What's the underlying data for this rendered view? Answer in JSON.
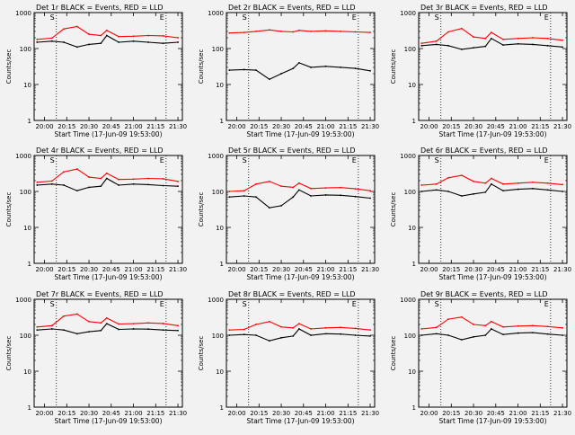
{
  "colors": {
    "events": "#000000",
    "lld": "#ff0000",
    "background": "#f2f2f2",
    "axes": "#000000"
  },
  "chart_data": [
    {
      "type": "line",
      "title": "Det 1r BLACK = Events, RED = LLD",
      "xlabel": "Start Time (17-Jun-09 19:53:00)",
      "ylabel": "Counts/sec",
      "yscale": "log",
      "ylim": [
        1,
        1000
      ],
      "xlim": [
        "19:53",
        "21:33"
      ],
      "x_ticks": [
        "20:00",
        "20:15",
        "20:30",
        "20:45",
        "21:00",
        "21:15",
        "21:30"
      ],
      "y_ticks": [
        "1",
        "10",
        "100",
        "1000"
      ],
      "markers": [
        "S",
        "E"
      ],
      "dotted_lines": [
        "20:08",
        "21:22"
      ],
      "grid": false,
      "x": [
        "19:55",
        "20:05",
        "20:13",
        "20:22",
        "20:30",
        "20:38",
        "20:42",
        "20:50",
        "21:00",
        "21:10",
        "21:20",
        "21:30"
      ],
      "series": [
        {
          "name": "Events",
          "values": [
            150,
            160,
            150,
            110,
            130,
            140,
            230,
            150,
            160,
            150,
            140,
            150
          ]
        },
        {
          "name": "LLD",
          "values": [
            180,
            195,
            350,
            410,
            250,
            230,
            320,
            215,
            220,
            230,
            225,
            200
          ]
        }
      ]
    },
    {
      "type": "line",
      "title": "Det 2r BLACK = Events, RED = LLD",
      "xlabel": "Start Time (17-Jun-09 19:53:00)",
      "ylabel": "Counts/sec",
      "yscale": "log",
      "ylim": [
        1,
        1000
      ],
      "xlim": [
        "19:53",
        "21:33"
      ],
      "x_ticks": [
        "20:00",
        "20:15",
        "20:30",
        "20:45",
        "21:00",
        "21:15",
        "21:30"
      ],
      "y_ticks": [
        "1",
        "10",
        "100",
        "1000"
      ],
      "markers": [
        "S",
        "E"
      ],
      "dotted_lines": [
        "20:08",
        "21:22"
      ],
      "grid": false,
      "x": [
        "19:55",
        "20:05",
        "20:13",
        "20:22",
        "20:30",
        "20:38",
        "20:42",
        "20:50",
        "21:00",
        "21:10",
        "21:20",
        "21:30"
      ],
      "series": [
        {
          "name": "Events",
          "values": [
            25,
            26,
            25,
            14,
            20,
            28,
            40,
            30,
            32,
            30,
            28,
            24
          ]
        },
        {
          "name": "LLD",
          "values": [
            270,
            280,
            300,
            330,
            300,
            290,
            320,
            300,
            310,
            300,
            290,
            280
          ]
        }
      ]
    },
    {
      "type": "line",
      "title": "Det 3r BLACK = Events, RED = LLD",
      "xlabel": "Start Time (17-Jun-09 19:53:00)",
      "ylabel": "Counts/sec",
      "yscale": "log",
      "ylim": [
        1,
        1000
      ],
      "xlim": [
        "19:53",
        "21:33"
      ],
      "x_ticks": [
        "20:00",
        "20:15",
        "20:30",
        "20:45",
        "21:00",
        "21:15",
        "21:30"
      ],
      "y_ticks": [
        "1",
        "10",
        "100",
        "1000"
      ],
      "markers": [
        "S",
        "E"
      ],
      "dotted_lines": [
        "20:08",
        "21:22"
      ],
      "grid": false,
      "x": [
        "19:55",
        "20:05",
        "20:13",
        "20:22",
        "20:30",
        "20:38",
        "20:42",
        "20:50",
        "21:00",
        "21:10",
        "21:20",
        "21:30"
      ],
      "series": [
        {
          "name": "Events",
          "values": [
            120,
            130,
            120,
            95,
            105,
            115,
            190,
            125,
            135,
            130,
            120,
            110
          ]
        },
        {
          "name": "LLD",
          "values": [
            140,
            160,
            290,
            360,
            210,
            190,
            280,
            180,
            190,
            200,
            190,
            170
          ]
        }
      ]
    },
    {
      "type": "line",
      "title": "Det 4r BLACK = Events, RED = LLD",
      "xlabel": "Start Time (17-Jun-09 19:53:00)",
      "ylabel": "Counts/sec",
      "yscale": "log",
      "ylim": [
        1,
        1000
      ],
      "xlim": [
        "19:53",
        "21:33"
      ],
      "x_ticks": [
        "20:00",
        "20:15",
        "20:30",
        "20:45",
        "21:00",
        "21:15",
        "21:30"
      ],
      "y_ticks": [
        "1",
        "10",
        "100",
        "1000"
      ],
      "markers": [
        "S",
        "E"
      ],
      "dotted_lines": [
        "20:08",
        "21:22"
      ],
      "grid": false,
      "x": [
        "19:55",
        "20:05",
        "20:13",
        "20:22",
        "20:30",
        "20:38",
        "20:42",
        "20:50",
        "21:00",
        "21:10",
        "21:20",
        "21:30"
      ],
      "series": [
        {
          "name": "Events",
          "values": [
            150,
            160,
            150,
            105,
            130,
            140,
            230,
            150,
            160,
            155,
            145,
            140
          ]
        },
        {
          "name": "LLD",
          "values": [
            180,
            195,
            350,
            420,
            250,
            230,
            320,
            215,
            220,
            230,
            225,
            190
          ]
        }
      ]
    },
    {
      "type": "line",
      "title": "Det 5r BLACK = Events, RED = LLD",
      "xlabel": "Start Time (17-Jun-09 19:53:00)",
      "ylabel": "Counts/sec",
      "yscale": "log",
      "ylim": [
        1,
        1000
      ],
      "xlim": [
        "19:53",
        "21:33"
      ],
      "x_ticks": [
        "20:00",
        "20:15",
        "20:30",
        "20:45",
        "21:00",
        "21:15",
        "21:30"
      ],
      "y_ticks": [
        "1",
        "10",
        "100",
        "1000"
      ],
      "markers": [
        "S",
        "E"
      ],
      "dotted_lines": [
        "20:08",
        "21:22"
      ],
      "grid": false,
      "x": [
        "19:55",
        "20:05",
        "20:13",
        "20:22",
        "20:30",
        "20:38",
        "20:42",
        "20:50",
        "21:00",
        "21:10",
        "21:20",
        "21:30"
      ],
      "series": [
        {
          "name": "Events",
          "values": [
            70,
            75,
            70,
            35,
            40,
            70,
            110,
            75,
            80,
            78,
            72,
            65
          ]
        },
        {
          "name": "LLD",
          "values": [
            100,
            105,
            160,
            190,
            140,
            130,
            170,
            120,
            125,
            128,
            118,
            105
          ]
        }
      ]
    },
    {
      "type": "line",
      "title": "Det 6r BLACK = Events, RED = LLD",
      "xlabel": "Start Time (17-Jun-09 19:53:00)",
      "ylabel": "Counts/sec",
      "yscale": "log",
      "ylim": [
        1,
        1000
      ],
      "xlim": [
        "19:53",
        "21:33"
      ],
      "x_ticks": [
        "20:00",
        "20:15",
        "20:30",
        "20:45",
        "21:00",
        "21:15",
        "21:30"
      ],
      "y_ticks": [
        "1",
        "10",
        "100",
        "1000"
      ],
      "markers": [
        "S",
        "E"
      ],
      "dotted_lines": [
        "20:08",
        "21:22"
      ],
      "grid": false,
      "x": [
        "19:55",
        "20:05",
        "20:13",
        "20:22",
        "20:30",
        "20:38",
        "20:42",
        "20:50",
        "21:00",
        "21:10",
        "21:20",
        "21:30"
      ],
      "series": [
        {
          "name": "Events",
          "values": [
            100,
            110,
            100,
            75,
            85,
            95,
            160,
            105,
            115,
            120,
            110,
            100
          ]
        },
        {
          "name": "LLD",
          "values": [
            150,
            160,
            240,
            280,
            190,
            170,
            230,
            160,
            170,
            180,
            170,
            155
          ]
        }
      ]
    },
    {
      "type": "line",
      "title": "Det 7r BLACK = Events, RED = LLD",
      "xlabel": "Start Time (17-Jun-09 19:53:00)",
      "ylabel": "Counts/sec",
      "yscale": "log",
      "ylim": [
        1,
        1000
      ],
      "xlim": [
        "19:53",
        "21:33"
      ],
      "x_ticks": [
        "20:00",
        "20:15",
        "20:30",
        "20:45",
        "21:00",
        "21:15",
        "21:30"
      ],
      "y_ticks": [
        "1",
        "10",
        "100",
        "1000"
      ],
      "markers": [
        "S",
        "E"
      ],
      "dotted_lines": [
        "20:08",
        "21:22"
      ],
      "grid": false,
      "x": [
        "19:55",
        "20:05",
        "20:13",
        "20:22",
        "20:30",
        "20:38",
        "20:42",
        "20:50",
        "21:00",
        "21:10",
        "21:20",
        "21:30"
      ],
      "series": [
        {
          "name": "Events",
          "values": [
            140,
            150,
            140,
            110,
            125,
            135,
            210,
            145,
            150,
            148,
            140,
            135
          ]
        },
        {
          "name": "LLD",
          "values": [
            170,
            185,
            340,
            390,
            240,
            220,
            300,
            205,
            210,
            220,
            212,
            185
          ]
        }
      ]
    },
    {
      "type": "line",
      "title": "Det 8r BLACK = Events, RED = LLD",
      "xlabel": "Start Time (17-Jun-09 19:53:00)",
      "ylabel": "Counts/sec",
      "yscale": "log",
      "ylim": [
        1,
        1000
      ],
      "xlim": [
        "19:53",
        "21:33"
      ],
      "x_ticks": [
        "20:00",
        "20:15",
        "20:30",
        "20:45",
        "21:00",
        "21:15",
        "21:30"
      ],
      "y_ticks": [
        "1",
        "10",
        "100",
        "1000"
      ],
      "markers": [
        "S",
        "E"
      ],
      "dotted_lines": [
        "20:08",
        "21:22"
      ],
      "grid": false,
      "x": [
        "19:55",
        "20:05",
        "20:13",
        "20:22",
        "20:30",
        "20:38",
        "20:42",
        "20:50",
        "21:00",
        "21:10",
        "21:20",
        "21:30"
      ],
      "series": [
        {
          "name": "Events",
          "values": [
            100,
            105,
            100,
            70,
            85,
            95,
            150,
            100,
            110,
            108,
            100,
            95
          ]
        },
        {
          "name": "LLD",
          "values": [
            140,
            145,
            200,
            240,
            170,
            160,
            210,
            150,
            160,
            165,
            155,
            140
          ]
        }
      ]
    },
    {
      "type": "line",
      "title": "Det 9r BLACK = Events, RED = LLD",
      "xlabel": "Start Time (17-Jun-09 19:53:00)",
      "ylabel": "Counts/sec",
      "yscale": "log",
      "ylim": [
        1,
        1000
      ],
      "xlim": [
        "19:53",
        "21:33"
      ],
      "x_ticks": [
        "20:00",
        "20:15",
        "20:30",
        "20:45",
        "21:00",
        "21:15",
        "21:30"
      ],
      "y_ticks": [
        "1",
        "10",
        "100",
        "1000"
      ],
      "markers": [
        "S",
        "E"
      ],
      "dotted_lines": [
        "20:08",
        "21:22"
      ],
      "grid": false,
      "x": [
        "19:55",
        "20:05",
        "20:13",
        "20:22",
        "20:30",
        "20:38",
        "20:42",
        "20:50",
        "21:00",
        "21:10",
        "21:20",
        "21:30"
      ],
      "series": [
        {
          "name": "Events",
          "values": [
            100,
            110,
            100,
            75,
            90,
            100,
            150,
            105,
            115,
            118,
            108,
            100
          ]
        },
        {
          "name": "LLD",
          "values": [
            150,
            165,
            280,
            320,
            200,
            185,
            240,
            170,
            180,
            185,
            175,
            160
          ]
        }
      ]
    }
  ]
}
